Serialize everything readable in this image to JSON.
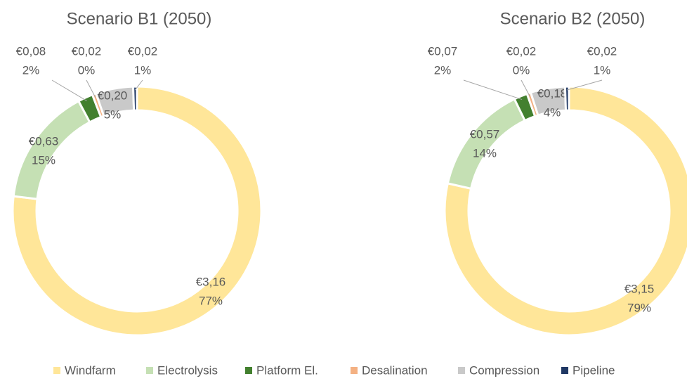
{
  "chart_data": [
    {
      "type": "donut",
      "title": "Scenario B1 (2050)",
      "categories": [
        "Windfarm",
        "Electrolysis",
        "Platform El.",
        "Desalination",
        "Compression",
        "Pipeline"
      ],
      "colors": [
        "#ffe699",
        "#c5e0b4",
        "#43802f",
        "#f4b183",
        "#c9c9c9",
        "#203864"
      ],
      "values": [
        3.16,
        0.63,
        0.08,
        0.02,
        0.2,
        0.02
      ],
      "value_labels": [
        "€3,16",
        "€0,63",
        "€0,08",
        "€0,02",
        "€0,20",
        "€0,02"
      ],
      "percents": [
        77,
        15,
        2,
        0,
        5,
        1
      ],
      "percent_labels": [
        "77%",
        "15%",
        "2%",
        "0%",
        "5%",
        "1%"
      ],
      "legend": "bottom"
    },
    {
      "type": "donut",
      "title": "Scenario B2 (2050)",
      "categories": [
        "Windfarm",
        "Electrolysis",
        "Platform El.",
        "Desalination",
        "Compression",
        "Pipeline"
      ],
      "colors": [
        "#ffe699",
        "#c5e0b4",
        "#43802f",
        "#f4b183",
        "#c9c9c9",
        "#203864"
      ],
      "values": [
        3.15,
        0.57,
        0.07,
        0.02,
        0.18,
        0.02
      ],
      "value_labels": [
        "€3,15",
        "€0,57",
        "€0,07",
        "€0,02",
        "€0,18",
        "€0,02"
      ],
      "percents": [
        79,
        14,
        2,
        0,
        4,
        1
      ],
      "percent_labels": [
        "79%",
        "14%",
        "2%",
        "0%",
        "4%",
        "1%"
      ],
      "legend": "bottom"
    }
  ]
}
